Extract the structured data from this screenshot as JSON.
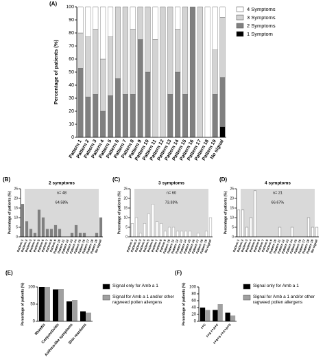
{
  "chart_data": [
    {
      "type": "bar",
      "panel_label": "(A)",
      "stacked": true,
      "legend": "right",
      "y_label": "Percentage of patients (%)",
      "categories": [
        "Pattern 1",
        "Pattern 2",
        "Pattern 3",
        "Pattern 4",
        "Pattern 5",
        "Pattern 6",
        "Pattern 7",
        "Pattern 8",
        "Pattern 9",
        "Pattern 10",
        "Pattern 11",
        "Pattern 12",
        "Pattern 13",
        "Pattern 14",
        "Pattern 15",
        "Pattern 16",
        "Pattern 17",
        "Pattern 18",
        "Pattern 19",
        "No signal"
      ],
      "series": [
        {
          "name": "1 Symptom",
          "color": "#000000",
          "values": [
            0,
            0,
            0,
            0,
            0,
            0,
            0,
            0,
            0,
            0,
            0,
            0,
            0,
            0,
            0,
            0,
            0,
            0,
            0,
            8
          ]
        },
        {
          "name": "2 Symptoms",
          "color": "#808080",
          "values": [
            53,
            31,
            33,
            20,
            32,
            45,
            33,
            33,
            75,
            50,
            0,
            0,
            33,
            50,
            33,
            100,
            0,
            0,
            33,
            38
          ]
        },
        {
          "name": "3 Symptoms",
          "color": "#d3d3d3",
          "values": [
            27,
            46,
            50,
            40,
            45,
            55,
            67,
            50,
            25,
            50,
            75,
            100,
            67,
            33,
            67,
            0,
            100,
            0,
            34,
            46
          ]
        },
        {
          "name": "4 Symptoms",
          "color": "#ffffff",
          "values": [
            20,
            23,
            17,
            40,
            23,
            0,
            0,
            17,
            0,
            0,
            25,
            0,
            0,
            17,
            0,
            0,
            0,
            100,
            33,
            8
          ]
        }
      ],
      "ylim": [
        0,
        100
      ],
      "yticks": [
        0,
        10,
        20,
        30,
        40,
        50,
        60,
        70,
        80,
        90,
        100
      ]
    },
    {
      "type": "bar",
      "panel_label": "(B)",
      "title": "2 symptoms",
      "annotations": [
        "n= 48",
        "64.58%"
      ],
      "shade": true,
      "y_label": "Percentage of patients (%)",
      "color": "#808080",
      "edgecolor": "#808080",
      "categories": [
        "Pattern 1",
        "Pattern 2",
        "Pattern 3",
        "Pattern 4",
        "Pattern 5",
        "Pattern 6",
        "Pattern 7",
        "Pattern 8",
        "Pattern 9",
        "Pattern 10",
        "Pattern 11",
        "Pattern 12",
        "Pattern 13",
        "Pattern 14",
        "Pattern 15",
        "Pattern 16",
        "Pattern 17",
        "Pattern 18",
        "Pattern 19",
        "No signal"
      ],
      "values": [
        17,
        8,
        4,
        2,
        14,
        10,
        4,
        4,
        6,
        4,
        0,
        0,
        2,
        6,
        2,
        2,
        0,
        0,
        2,
        10
      ],
      "ylim": [
        0,
        25
      ],
      "yticks": [
        0,
        5,
        10,
        15,
        20,
        25
      ]
    },
    {
      "type": "bar",
      "panel_label": "(C)",
      "title": "3 symptoms",
      "annotations": [
        "n= 60",
        "73.33%"
      ],
      "shade": true,
      "y_label": "Percentage of patients (%)",
      "color": "#ffffff",
      "edgecolor": "#a8a8a8",
      "categories": [
        "Pattern 1",
        "Pattern 2",
        "Pattern 3",
        "Pattern 4",
        "Pattern 5",
        "Pattern 6",
        "Pattern 7",
        "Pattern 8",
        "Pattern 9",
        "Pattern 10",
        "Pattern 11",
        "Pattern 12",
        "Pattern 13",
        "Pattern 14",
        "Pattern 15",
        "Pattern 16",
        "Pattern 17",
        "Pattern 18",
        "Pattern 19",
        "No signal"
      ],
      "values": [
        7,
        10,
        2,
        7,
        12,
        17,
        8,
        7,
        3,
        5,
        5,
        3,
        3,
        3,
        3,
        0,
        2,
        0,
        3,
        10
      ],
      "ylim": [
        0,
        25
      ],
      "yticks": [
        0,
        5,
        10,
        15,
        20,
        25
      ]
    },
    {
      "type": "bar",
      "panel_label": "(D)",
      "title": "4 symptoms",
      "annotations": [
        "n= 21",
        "66.67%"
      ],
      "shade": true,
      "y_label": "Percentage of patients (%)",
      "color": "#ffffff",
      "edgecolor": "#888888",
      "categories": [
        "Pattern 1",
        "Pattern 2",
        "Pattern 3",
        "Pattern 4",
        "Pattern 5",
        "Pattern 6",
        "Pattern 7",
        "Pattern 8",
        "Pattern 9",
        "Pattern 10",
        "Pattern 11",
        "Pattern 12",
        "Pattern 13",
        "Pattern 14",
        "Pattern 15",
        "Pattern 16",
        "Pattern 17",
        "Pattern 18",
        "Pattern 19",
        "No signal"
      ],
      "values": [
        14,
        14,
        5,
        10,
        24,
        0,
        0,
        0,
        0,
        0,
        5,
        0,
        0,
        5,
        0,
        0,
        0,
        10,
        5,
        5
      ],
      "ylim": [
        0,
        25
      ],
      "yticks": [
        0,
        5,
        10,
        15,
        20,
        25
      ]
    },
    {
      "type": "bar",
      "panel_label": "(E)",
      "legend": "right",
      "y_label": "Percentage of patients (%)",
      "categories": [
        "Rhinitis",
        "Conjunctivitis",
        "Asthma-like symptoms",
        "Skin reactions"
      ],
      "series": [
        {
          "name": "Signal only for Amb a 1",
          "color": "#000000",
          "values": [
            100,
            93,
            58,
            29
          ]
        },
        {
          "name": "Signal for Amb a 1 and/or other ragweed pollen allergens",
          "color": "#a0a0a0",
          "values": [
            100,
            94,
            62,
            25
          ]
        }
      ],
      "ylim": [
        0,
        100
      ],
      "yticks": [
        0,
        50,
        100
      ]
    },
    {
      "type": "bar",
      "panel_label": "(F)",
      "legend": "right",
      "y_label": "Percentage of patients (%)",
      "categories": [
        "r+c",
        "r+a r+a+c",
        "r+a+s r+c+a+s"
      ],
      "series": [
        {
          "name": "Signal only for Amb a 1",
          "color": "#000000",
          "values": [
            40,
            33,
            25
          ]
        },
        {
          "name": "Signal for Amb a 1 and/or other ragweed pollen allergens",
          "color": "#a0a0a0",
          "values": [
            33,
            50,
            17
          ]
        }
      ],
      "ylim": [
        0,
        100
      ],
      "yticks": [
        0,
        20,
        40,
        60,
        80,
        100
      ]
    }
  ]
}
